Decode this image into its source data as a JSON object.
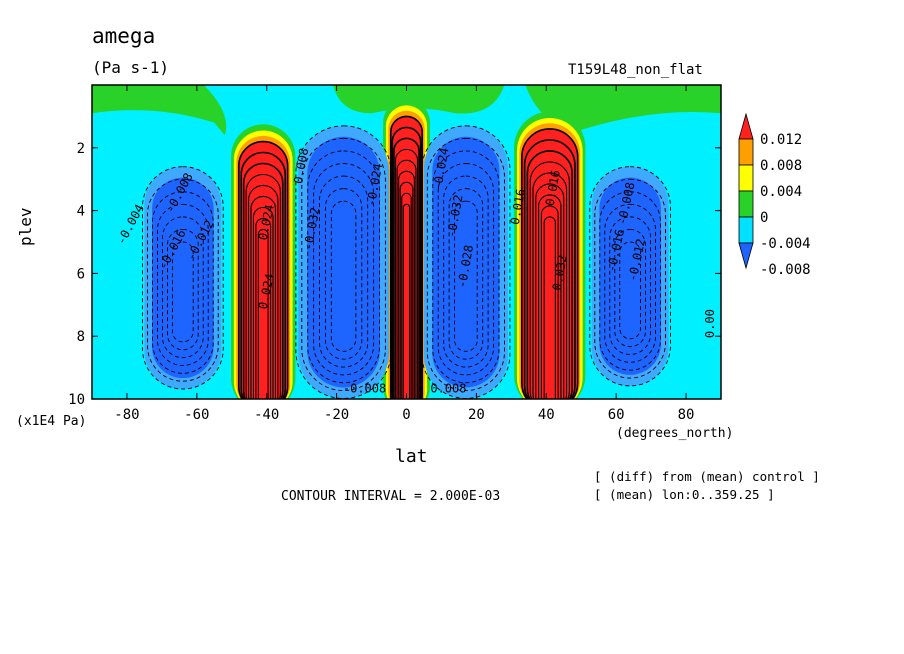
{
  "header": {
    "title": "amega",
    "units": "(Pa s-1)",
    "experiment": "T159L48_non_flat"
  },
  "footer": {
    "contour_interval": "CONTOUR INTERVAL = 2.000E-03",
    "note_diff": "[ (diff) from (mean) control ]",
    "note_mean": "[ (mean) lon:0..359.25 ]"
  },
  "chart_data": {
    "type": "contour",
    "xlabel": "lat",
    "x_units": "(degrees_north)",
    "ylabel": "plev",
    "y_units": "(x1E4 Pa)",
    "xlim": [
      -90,
      90
    ],
    "ylim": [
      0,
      10
    ],
    "y_inverted": true,
    "x_ticks": [
      -80,
      -60,
      -40,
      -20,
      0,
      20,
      40,
      60,
      80
    ],
    "x_tick_labels": [
      "-80",
      "-60",
      "-40",
      "-20",
      "0",
      "20",
      "40",
      "60",
      "80"
    ],
    "y_ticks": [
      2,
      4,
      6,
      8,
      10
    ],
    "y_tick_labels": [
      "2",
      "4",
      "6",
      "8",
      "10"
    ],
    "contour_interval": 0.002,
    "colorbar": {
      "placement": "right",
      "levels": [
        -0.008,
        -0.004,
        0,
        0.004,
        0.008,
        0.012
      ],
      "labels": [
        "-0.008",
        "-0.004",
        "0",
        "0.004",
        "0.008",
        "0.012"
      ],
      "colors": [
        "#1e64ff",
        "#00e0ff",
        "#28d228",
        "#ffff00",
        "#ffa000",
        "#ff2020"
      ],
      "extend": "both"
    },
    "background_color": "#00f0ff",
    "features": [
      {
        "name": "equatorial ascent",
        "lat": 0,
        "p_top": 1.0,
        "p_bottom": 10,
        "half_width_deg": 4.5,
        "value": 0.012,
        "color": "#ff2020"
      },
      {
        "name": "southern midlatitude band",
        "lat": -41,
        "p_top": 1.8,
        "p_bottom": 10,
        "half_width_deg": 7,
        "value": 0.012,
        "color": "#ff2020"
      },
      {
        "name": "northern midlatitude band",
        "lat": 41,
        "p_top": 1.4,
        "p_bottom": 10,
        "half_width_deg": 8,
        "value": 0.012,
        "color": "#ff2020"
      },
      {
        "name": "southern subtropical descent",
        "lat": -18,
        "p_top": 1.3,
        "p_bottom": 9.6,
        "half_width_deg": 13,
        "value": -0.008,
        "color": "#1e64ff"
      },
      {
        "name": "northern subtropical descent",
        "lat": 17,
        "p_top": 1.3,
        "p_bottom": 9.6,
        "half_width_deg": 12,
        "value": -0.008,
        "color": "#1e64ff"
      },
      {
        "name": "southern high-latitude descent",
        "lat": -64,
        "p_top": 2.6,
        "p_bottom": 9.3,
        "half_width_deg": 11,
        "value": -0.008,
        "color": "#1e64ff"
      },
      {
        "name": "northern high-latitude descent",
        "lat": 64,
        "p_top": 2.6,
        "p_bottom": 9.2,
        "half_width_deg": 11,
        "value": -0.008,
        "color": "#1e64ff"
      }
    ],
    "contour_labels": [
      {
        "text": "-0.004",
        "lat": -78,
        "p": 4.5,
        "angle": -62
      },
      {
        "text": "-0.008",
        "lat": -64,
        "p": 3.5,
        "angle": -62
      },
      {
        "text": "-0.016",
        "lat": -66,
        "p": 5.3,
        "angle": -62
      },
      {
        "text": "-0.012",
        "lat": -58,
        "p": 5.0,
        "angle": -62
      },
      {
        "text": "0.024",
        "lat": -39,
        "p": 4.4,
        "angle": -78
      },
      {
        "text": "0.024",
        "lat": -39,
        "p": 6.6,
        "angle": -78
      },
      {
        "text": "0.008",
        "lat": -29,
        "p": 2.6,
        "angle": -80
      },
      {
        "text": "-0.032",
        "lat": -26,
        "p": 4.6,
        "angle": -80
      },
      {
        "text": "-0.024",
        "lat": -8,
        "p": 3.2,
        "angle": -80
      },
      {
        "text": "-0.008",
        "lat": -12,
        "p": 9.8,
        "angle": 0
      },
      {
        "text": "0.008",
        "lat": 12,
        "p": 9.8,
        "angle": 0
      },
      {
        "text": "-0.032",
        "lat": 15,
        "p": 4.2,
        "angle": -80
      },
      {
        "text": "-0.024",
        "lat": 11,
        "p": 2.7,
        "angle": -80
      },
      {
        "text": "-0.028",
        "lat": 18,
        "p": 5.8,
        "angle": -80
      },
      {
        "text": "0.016",
        "lat": 33,
        "p": 3.9,
        "angle": -80
      },
      {
        "text": "0.016",
        "lat": 43,
        "p": 3.3,
        "angle": -80
      },
      {
        "text": "0.032",
        "lat": 45,
        "p": 6.0,
        "angle": -80
      },
      {
        "text": "-0.008",
        "lat": 64,
        "p": 3.8,
        "angle": -78
      },
      {
        "text": "-0.012",
        "lat": 67,
        "p": 5.6,
        "angle": -78
      },
      {
        "text": "-0.016",
        "lat": 61,
        "p": 5.3,
        "angle": -78
      },
      {
        "text": "0.00",
        "lat": 88,
        "p": 7.6,
        "angle": -90
      }
    ]
  }
}
